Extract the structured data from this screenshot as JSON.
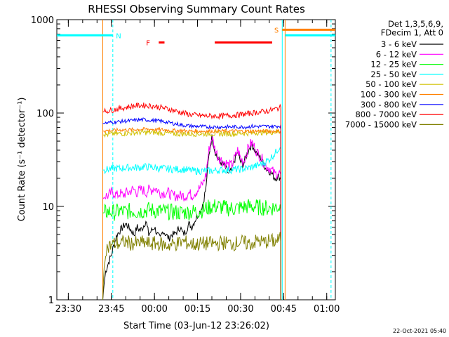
{
  "chart_data": {
    "type": "line",
    "title": "RHESSI Observing Summary Count Rates",
    "xlabel": "Start Time (03-Jun-12 23:26:02)",
    "ylabel": "Count Rate (s⁻¹ detector⁻¹)",
    "yscale": "log",
    "ylim": [
      1,
      1000
    ],
    "xlim_min": [
      -34,
      63
    ],
    "x_unit": "minutes after 00:00 UT on 04-Jun-12",
    "x_ticks": [
      {
        "t": -30,
        "label": "23:30"
      },
      {
        "t": -15,
        "label": "23:45"
      },
      {
        "t": 0,
        "label": "00:00"
      },
      {
        "t": 15,
        "label": "00:15"
      },
      {
        "t": 30,
        "label": "00:30"
      },
      {
        "t": 45,
        "label": "00:45"
      },
      {
        "t": 60,
        "label": "01:00"
      }
    ],
    "y_ticks": [
      {
        "v": 1,
        "label": "1"
      },
      {
        "v": 10,
        "label": "10"
      },
      {
        "v": 100,
        "label": "100"
      },
      {
        "v": 1000,
        "label": "1000"
      }
    ],
    "legend_header": [
      "Det 1,3,5,6,9,",
      "FDecim 1, Att 0"
    ],
    "legend_placement": "right",
    "series": [
      {
        "name": "3 - 6 keV",
        "color": "#000000",
        "x": [
          -18,
          -17,
          -16,
          -15,
          -14,
          -13,
          -12,
          -11,
          -10,
          -9,
          -8,
          -7,
          -6,
          -5,
          -4,
          -3,
          -2,
          -1,
          0,
          1,
          2,
          3,
          4,
          5,
          6,
          7,
          8,
          9,
          10,
          11,
          12,
          13,
          14,
          15,
          16,
          17,
          18,
          19,
          20,
          21,
          22,
          23,
          24,
          25,
          26,
          27,
          28,
          29,
          30,
          31,
          32,
          33,
          34,
          35,
          36,
          37,
          38,
          39,
          40,
          41,
          42,
          43,
          44
        ],
        "y": [
          1,
          2,
          2.5,
          3,
          4,
          5,
          5.5,
          6,
          6.5,
          6,
          5.5,
          5,
          6,
          5.5,
          6,
          7,
          5,
          5.5,
          6,
          5,
          4.5,
          5.5,
          5,
          4.5,
          5,
          5,
          5.5,
          6,
          5,
          5.5,
          6.5,
          6,
          7,
          8,
          9,
          11,
          16,
          35,
          55,
          40,
          32,
          30,
          28,
          25,
          22,
          25,
          32,
          38,
          30,
          28,
          35,
          42,
          46,
          40,
          35,
          33,
          28,
          25,
          24,
          22,
          20,
          21,
          20
        ]
      },
      {
        "name": "6 - 12 keV",
        "color": "#ff00ff",
        "x": [
          -18,
          -17,
          -16,
          -15,
          -14,
          -13,
          -12,
          -11,
          -10,
          -9,
          -8,
          -7,
          -6,
          -5,
          -4,
          -3,
          -2,
          -1,
          0,
          1,
          2,
          3,
          4,
          5,
          6,
          7,
          8,
          9,
          10,
          11,
          12,
          13,
          14,
          15,
          16,
          17,
          18,
          19,
          20,
          21,
          22,
          23,
          24,
          25,
          26,
          27,
          28,
          29,
          30,
          31,
          32,
          33,
          34,
          35,
          36,
          37,
          38,
          39,
          40,
          41,
          42,
          43,
          44
        ],
        "y": [
          12,
          13,
          13,
          14,
          14,
          13,
          14,
          13,
          14,
          14,
          15,
          15,
          14,
          15,
          15,
          14,
          15,
          15,
          16,
          15,
          14,
          14,
          14,
          14,
          13,
          13,
          13,
          13,
          13,
          13,
          14,
          13,
          14,
          15,
          16,
          18,
          22,
          40,
          55,
          42,
          35,
          32,
          30,
          29,
          27,
          28,
          33,
          40,
          33,
          30,
          37,
          45,
          48,
          42,
          37,
          34,
          30,
          27,
          26,
          24,
          22,
          23,
          22
        ]
      },
      {
        "name": "12 - 25 keV",
        "color": "#00ff00",
        "x": [
          -18,
          -16,
          -14,
          -12,
          -10,
          -8,
          -6,
          -4,
          -2,
          0,
          2,
          4,
          6,
          8,
          10,
          12,
          14,
          16,
          18,
          20,
          22,
          24,
          26,
          28,
          30,
          32,
          34,
          36,
          38,
          40,
          42,
          44
        ],
        "y": [
          8.5,
          8.8,
          8.6,
          8.9,
          8.7,
          9,
          8.8,
          9,
          9.2,
          9,
          8.9,
          8.8,
          8.7,
          8.6,
          8.6,
          8.7,
          8.8,
          9,
          9.5,
          10,
          10,
          9.7,
          9.5,
          9.5,
          9.7,
          10,
          10,
          9.8,
          9.7,
          9.6,
          9.8,
          10
        ]
      },
      {
        "name": "25 - 50 keV",
        "color": "#00ffff",
        "x": [
          -18,
          -16,
          -14,
          -12,
          -10,
          -8,
          -6,
          -4,
          -2,
          0,
          2,
          4,
          6,
          8,
          10,
          12,
          14,
          16,
          18,
          20,
          22,
          24,
          26,
          28,
          30,
          32,
          34,
          36,
          38,
          40,
          42,
          43,
          44
        ],
        "y": [
          24.5,
          25,
          25.5,
          25.5,
          26,
          26,
          26,
          26.5,
          26.5,
          26,
          25.5,
          25.5,
          25,
          25,
          25,
          24.5,
          24,
          24,
          24,
          24,
          24.5,
          24.5,
          24.5,
          25,
          25,
          25.5,
          26.5,
          27.5,
          29,
          32,
          37,
          41,
          45
        ]
      },
      {
        "name": "50 - 100 keV",
        "color": "#d0c000",
        "x": [
          -18,
          -16,
          -14,
          -12,
          -10,
          -8,
          -6,
          -4,
          -2,
          0,
          2,
          4,
          6,
          8,
          10,
          12,
          14,
          16,
          18,
          20,
          22,
          24,
          26,
          28,
          30,
          32,
          34,
          36,
          38,
          40,
          42,
          44
        ],
        "y": [
          58,
          59,
          60,
          60,
          61,
          61,
          62,
          62,
          62,
          62,
          61,
          61,
          60,
          60,
          60,
          60,
          60,
          60,
          60,
          60,
          60,
          60,
          60,
          60,
          61,
          61,
          61,
          62,
          62,
          62,
          63,
          63
        ]
      },
      {
        "name": "100 - 300 keV",
        "color": "#ff8000",
        "x": [
          -18,
          -16,
          -14,
          -12,
          -10,
          -8,
          -6,
          -4,
          -2,
          0,
          2,
          4,
          6,
          8,
          10,
          12,
          14,
          16,
          18,
          20,
          22,
          24,
          26,
          28,
          30,
          32,
          34,
          36,
          38,
          40,
          42,
          44
        ],
        "y": [
          64,
          65,
          65,
          66,
          66,
          66,
          67,
          67,
          67,
          67,
          66,
          66,
          65,
          65,
          65,
          64,
          64,
          64,
          64,
          64,
          64,
          64,
          64,
          64,
          64,
          64,
          64,
          64,
          64,
          64,
          64,
          64
        ]
      },
      {
        "name": "300 - 800 keV",
        "color": "#0000ff",
        "x": [
          -18,
          -16,
          -14,
          -12,
          -10,
          -8,
          -6,
          -4,
          -2,
          0,
          2,
          4,
          6,
          8,
          10,
          12,
          14,
          16,
          18,
          20,
          22,
          24,
          26,
          28,
          30,
          32,
          34,
          36,
          38,
          40,
          42,
          44
        ],
        "y": [
          77,
          79,
          80,
          81,
          82,
          83,
          84,
          85,
          84,
          83,
          82,
          80,
          78,
          76,
          74,
          73,
          72,
          72,
          71,
          71,
          71,
          71,
          71,
          71,
          71,
          71,
          72,
          72,
          72,
          72,
          72,
          73
        ]
      },
      {
        "name": "800 - 7000 keV",
        "color": "#ff0000",
        "x": [
          -18,
          -16,
          -14,
          -12,
          -10,
          -8,
          -6,
          -4,
          -2,
          0,
          2,
          4,
          6,
          8,
          10,
          12,
          14,
          16,
          18,
          20,
          22,
          24,
          26,
          28,
          30,
          32,
          34,
          36,
          38,
          40,
          42,
          44
        ],
        "y": [
          103,
          106,
          109,
          112,
          115,
          118,
          120,
          121,
          120,
          118,
          115,
          112,
          108,
          104,
          100,
          97,
          95,
          94,
          93,
          93,
          93,
          93,
          94,
          95,
          96,
          98,
          100,
          102,
          104,
          106,
          110,
          115
        ]
      },
      {
        "name": "7000 - 15000 keV",
        "color": "#808000",
        "x": [
          -18,
          -17,
          -16,
          -14,
          -12,
          -10,
          -8,
          -6,
          -4,
          -2,
          0,
          2,
          4,
          6,
          8,
          10,
          12,
          14,
          16,
          18,
          20,
          22,
          24,
          26,
          28,
          30,
          32,
          34,
          36,
          38,
          40,
          42,
          44
        ],
        "y": [
          1,
          3.5,
          3.7,
          4,
          4,
          4.2,
          4,
          4,
          4.1,
          4,
          4,
          4,
          3.8,
          3.9,
          4,
          4.2,
          4,
          3.9,
          4,
          4,
          4,
          4,
          4.1,
          4,
          4,
          4.2,
          4,
          4,
          4.3,
          4.1,
          4.3,
          4.2,
          4.5
        ]
      }
    ],
    "flags": [
      {
        "label": "N",
        "color": "#00ffff"
      },
      {
        "label": "F",
        "color": "#ff0000"
      },
      {
        "label": "S",
        "color": "#ff8000"
      }
    ],
    "night_intervals": [
      [
        -34,
        -14.5
      ],
      [
        45.5,
        63
      ]
    ],
    "night_level": 680,
    "saa_interval": [
      44.5,
      63
    ],
    "saa_level": 780,
    "flare_intervals": [
      [
        1.5,
        3.5
      ],
      [
        21,
        41
      ]
    ],
    "flare_level": 570,
    "vertical_markers": [
      {
        "t": -14.5,
        "color": "#00ffff",
        "style": "dashed"
      },
      {
        "t": -18,
        "color": "#ff8000",
        "style": "solid"
      },
      {
        "t": 44.5,
        "color": "#00ffff",
        "style": "solid"
      },
      {
        "t": 45.5,
        "color": "#ff8000",
        "style": "solid"
      },
      {
        "t": 61.5,
        "color": "#00ffff",
        "style": "dashed"
      }
    ],
    "stamp": "22-Oct-2021 05:40"
  }
}
